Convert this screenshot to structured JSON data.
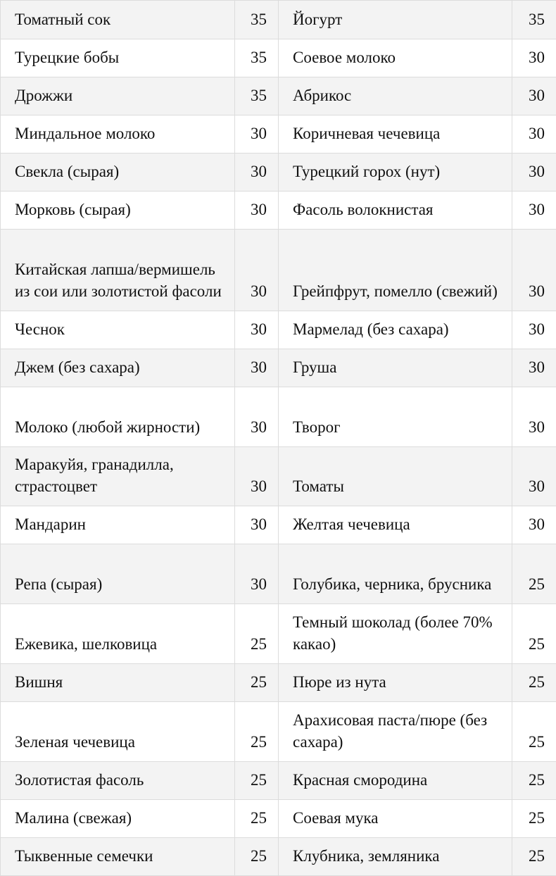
{
  "rows": [
    {
      "left_name": "Томатный сок",
      "left_value": "35",
      "right_name": "Йогурт",
      "right_value": "35"
    },
    {
      "left_name": "Турецкие бобы",
      "left_value": "35",
      "right_name": "Соевое молоко",
      "right_value": "30"
    },
    {
      "left_name": "Дрожжи",
      "left_value": "35",
      "right_name": "Абрикос",
      "right_value": "30"
    },
    {
      "left_name": "Миндальное молоко",
      "left_value": "30",
      "right_name": "Коричневая чечевица",
      "right_value": "30"
    },
    {
      "left_name": "Свекла (сырая)",
      "left_value": "30",
      "right_name": "Турецкий горох (нут)",
      "right_value": "30"
    },
    {
      "left_name": "Морковь (сырая)",
      "left_value": "30",
      "right_name": "Фасоль волокнистая",
      "right_value": "30"
    },
    {
      "left_name": "Китайская лапша/вермишель из сои или золотистой фасоли",
      "left_value": "30",
      "right_name": "Грейпфрут, помелло (свежий)",
      "right_value": "30"
    },
    {
      "left_name": "Чеснок",
      "left_value": "30",
      "right_name": "Мармелад (без сахара)",
      "right_value": "30"
    },
    {
      "left_name": "Джем (без сахара)",
      "left_value": "30",
      "right_name": "Груша",
      "right_value": "30"
    },
    {
      "left_name": "Молоко (любой жирности)",
      "left_value": "30",
      "right_name": "Творог",
      "right_value": "30"
    },
    {
      "left_name": "Маракуйя, гранадилла, страстоцвет",
      "left_value": "30",
      "right_name": "Томаты",
      "right_value": "30"
    },
    {
      "left_name": "Мандарин",
      "left_value": "30",
      "right_name": "Желтая чечевица",
      "right_value": "30"
    },
    {
      "left_name": "Репа (сырая)",
      "left_value": "30",
      "right_name": "Голубика, черника, брусника",
      "right_value": "25"
    },
    {
      "left_name": "Ежевика, шелковица",
      "left_value": "25",
      "right_name": "Темный шоколад (более 70% какао)",
      "right_value": "25"
    },
    {
      "left_name": "Вишня",
      "left_value": "25",
      "right_name": "Пюре из нута",
      "right_value": "25"
    },
    {
      "left_name": "Зеленая чечевица",
      "left_value": "25",
      "right_name": "Арахисовая паста/пюре (без сахара)",
      "right_value": "25"
    },
    {
      "left_name": "Золотистая фасоль",
      "left_value": "25",
      "right_name": "Красная смородина",
      "right_value": "25"
    },
    {
      "left_name": "Малина (свежая)",
      "left_value": "25",
      "right_name": "Соевая мука",
      "right_value": "25"
    },
    {
      "left_name": "Тыквенные семечки",
      "left_value": "25",
      "right_name": "Клубника, земляника",
      "right_value": "25"
    }
  ]
}
